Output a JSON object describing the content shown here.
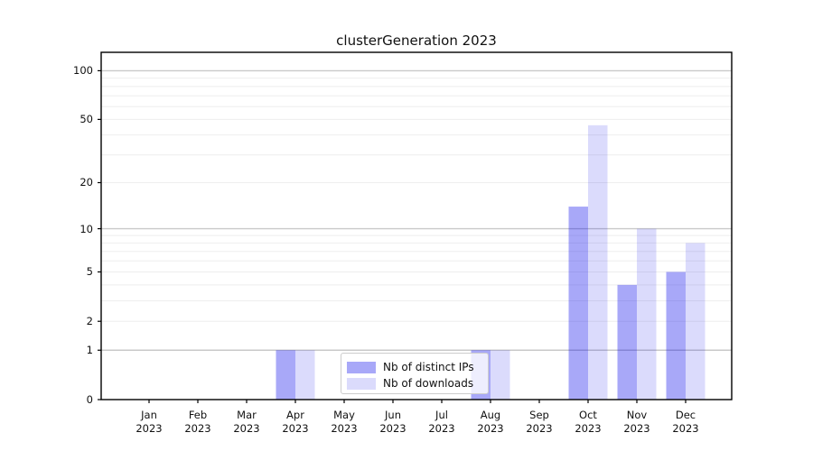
{
  "chart_data": {
    "type": "bar",
    "title": "clusterGeneration 2023",
    "categories": [
      "Jan 2023",
      "Feb 2023",
      "Mar 2023",
      "Apr 2023",
      "May 2023",
      "Jun 2023",
      "Jul 2023",
      "Aug 2023",
      "Sep 2023",
      "Oct 2023",
      "Nov 2023",
      "Dec 2023"
    ],
    "series": [
      {
        "name": "Nb of distinct IPs",
        "color": "rgba(0,0,235,0.34)",
        "legend_color_hex": "#a8a8f8",
        "values": [
          0,
          0,
          0,
          1,
          0,
          0,
          0,
          1,
          0,
          14,
          4,
          5
        ]
      },
      {
        "name": "Nb of downloads",
        "color": "rgba(0,0,235,0.14)",
        "legend_color_hex": "#dcdcfa",
        "values": [
          0,
          0,
          0,
          1,
          0,
          0,
          0,
          1,
          0,
          46,
          10,
          8
        ]
      }
    ],
    "xlabel": "",
    "ylabel": "",
    "yticks": [
      0,
      1,
      2,
      5,
      10,
      20,
      50,
      100
    ],
    "ylim": [
      0,
      130
    ],
    "yscale": "log1p",
    "grid": "on",
    "grid_minor_values": [
      2,
      3,
      4,
      5,
      6,
      7,
      8,
      9,
      20,
      30,
      40,
      50,
      60,
      70,
      80,
      90
    ],
    "grid_major_values": [
      1,
      10,
      100
    ],
    "legend_position": "lower center",
    "colors": {
      "bar_dark": "#a8a8f8",
      "bar_light": "#dcdcfa",
      "grid_major": "#c9c9c9",
      "grid_minor": "#eeeeee",
      "axis": "#000000",
      "text": "#111111"
    }
  }
}
